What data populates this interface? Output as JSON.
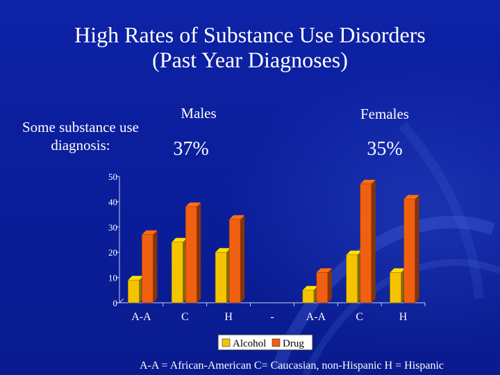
{
  "slide": {
    "title_line1": "High Rates of Substance Use Disorders",
    "title_line2": "(Past Year Diagnoses)",
    "label_line1": "Some substance use",
    "label_line2": "diagnosis:",
    "groups": [
      {
        "name": "Males",
        "percent": "37%"
      },
      {
        "name": "Females",
        "percent": "35%"
      }
    ],
    "footnote": "A-A = African-American   C= Caucasian, non-Hispanic   H = Hispanic"
  },
  "colors": {
    "background": "#0a1e9a",
    "alcohol": "#f5c400",
    "drug": "#f06010"
  },
  "chart_data": {
    "type": "bar",
    "categories": [
      "A-A",
      "C",
      "H",
      "-",
      "A-A",
      "C",
      "H"
    ],
    "series": [
      {
        "name": "Alcohol",
        "values": [
          9,
          24,
          20,
          null,
          5,
          19,
          12
        ]
      },
      {
        "name": "Drug",
        "values": [
          27,
          38,
          33,
          null,
          12,
          47,
          41
        ]
      }
    ],
    "yticks": [
      0,
      10,
      20,
      30,
      40,
      50
    ],
    "ylim": [
      0,
      50
    ],
    "grid": false,
    "legend": "bottom"
  }
}
